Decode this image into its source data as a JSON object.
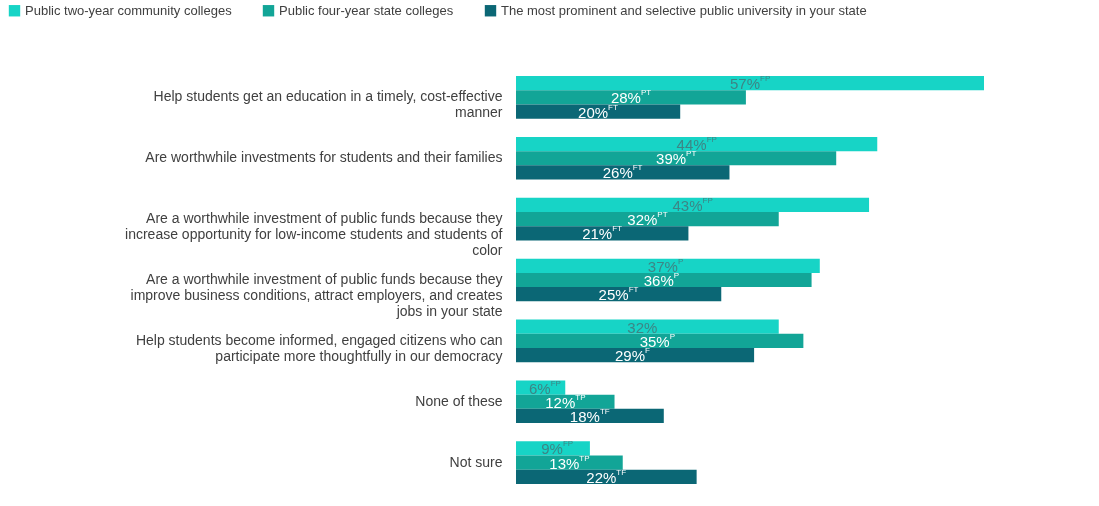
{
  "chart_data": {
    "type": "bar",
    "orientation": "horizontal",
    "legend": "top left",
    "grid": false,
    "categories": [
      "Help students get an education in a timely, cost-effective manner",
      "Are worthwhile investments for students and their families",
      "Are a worthwhile investment of public funds because they increase opportunity for low-income students and students of color",
      "Are a worthwhile investment of public funds because they improve business conditions, attract employers, and creates jobs in your state",
      "Help students become informed, engaged citizens who can participate more thoughtfully in our democracy",
      "None of these",
      "Not sure"
    ],
    "series": [
      {
        "name": "Public two-year community colleges",
        "color": "#17d4c6",
        "values": [
          57,
          44,
          43,
          37,
          32,
          6,
          9
        ],
        "value_labels": [
          "57%$^{FP}$",
          "44%$^{FP}$",
          "43%$^{FP}$",
          "37%$^{P}$",
          "32%",
          "6%$^{FP}$",
          "9%$^{FP}$"
        ]
      },
      {
        "name": "Public four-year state colleges",
        "color": "#12a597",
        "values": [
          28,
          39,
          32,
          36,
          35,
          12,
          13
        ],
        "value_labels": [
          "28%$^{PT}$",
          "39%$^{PT}$",
          "32%$^{PT}$",
          "36%$^{P}$",
          "35%$^{P}$",
          "12%$^{TP}$",
          "13%$^{TP}$"
        ]
      },
      {
        "name": "The most prominent and selective public university in your state",
        "color": "#0b6775",
        "values": [
          20,
          26,
          21,
          25,
          29,
          18,
          22
        ],
        "value_labels": [
          "20%$^{FT}$",
          "26%$^{FT}$",
          "21%$^{FT}$",
          "25%$^{FT}$",
          "29%$^{F}$",
          "18%$^{TF}$",
          "22%$^{TF}$"
        ]
      }
    ]
  }
}
